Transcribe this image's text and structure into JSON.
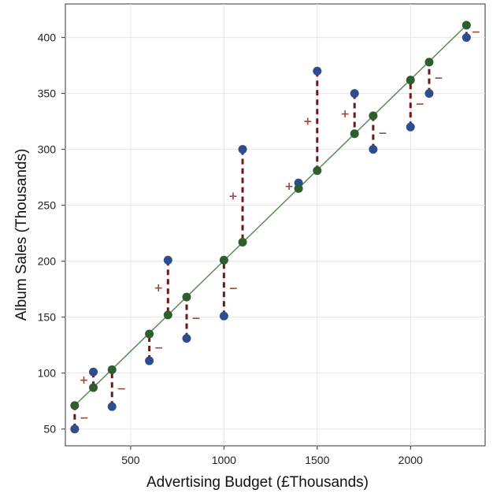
{
  "chart_data": {
    "type": "scatter",
    "title": "",
    "xlabel": "Advertising Budget (£Thousands)",
    "ylabel": "Album Sales (Thousands)",
    "xlim": [
      150,
      2400
    ],
    "ylim": [
      35,
      430
    ],
    "xticks": [
      500,
      1000,
      1500,
      2000
    ],
    "yticks": [
      50,
      100,
      150,
      200,
      250,
      300,
      350,
      400
    ],
    "grid": true,
    "series": [
      {
        "role": "observed",
        "color": "#2e4d8f",
        "points": [
          {
            "x": 200,
            "y": 50
          },
          {
            "x": 300,
            "y": 101
          },
          {
            "x": 400,
            "y": 70
          },
          {
            "x": 600,
            "y": 111
          },
          {
            "x": 700,
            "y": 201
          },
          {
            "x": 800,
            "y": 131
          },
          {
            "x": 1000,
            "y": 151
          },
          {
            "x": 1100,
            "y": 300
          },
          {
            "x": 1400,
            "y": 270
          },
          {
            "x": 1500,
            "y": 370
          },
          {
            "x": 1700,
            "y": 350
          },
          {
            "x": 1800,
            "y": 300
          },
          {
            "x": 2000,
            "y": 320
          },
          {
            "x": 2100,
            "y": 350
          },
          {
            "x": 2300,
            "y": 400
          }
        ]
      },
      {
        "role": "predicted",
        "color": "#2e5e2e",
        "points": [
          {
            "x": 200,
            "y": 71
          },
          {
            "x": 300,
            "y": 87
          },
          {
            "x": 400,
            "y": 103
          },
          {
            "x": 600,
            "y": 135
          },
          {
            "x": 700,
            "y": 152
          },
          {
            "x": 800,
            "y": 168
          },
          {
            "x": 1000,
            "y": 201
          },
          {
            "x": 1100,
            "y": 217
          },
          {
            "x": 1400,
            "y": 265
          },
          {
            "x": 1500,
            "y": 281
          },
          {
            "x": 1700,
            "y": 314
          },
          {
            "x": 1800,
            "y": 330
          },
          {
            "x": 2000,
            "y": 362
          },
          {
            "x": 2100,
            "y": 378
          },
          {
            "x": 2300,
            "y": 411
          }
        ]
      }
    ],
    "regression_line": {
      "color": "#5a8a5a",
      "from": {
        "x": 200,
        "y": 71
      },
      "to": {
        "x": 2300,
        "y": 411
      }
    },
    "residual_color": "#6b1a1a",
    "residual_labels": [
      {
        "x": 200,
        "text": "−"
      },
      {
        "x": 300,
        "text": "+"
      },
      {
        "x": 400,
        "text": "−"
      },
      {
        "x": 600,
        "text": "−"
      },
      {
        "x": 700,
        "text": "+"
      },
      {
        "x": 800,
        "text": "−"
      },
      {
        "x": 1000,
        "text": "−"
      },
      {
        "x": 1100,
        "text": "+"
      },
      {
        "x": 1400,
        "text": "+"
      },
      {
        "x": 1500,
        "text": "+"
      },
      {
        "x": 1700,
        "text": "+"
      },
      {
        "x": 1800,
        "text": "−"
      },
      {
        "x": 2000,
        "text": "−"
      },
      {
        "x": 2100,
        "text": "−"
      },
      {
        "x": 2300,
        "text": "−"
      }
    ]
  }
}
